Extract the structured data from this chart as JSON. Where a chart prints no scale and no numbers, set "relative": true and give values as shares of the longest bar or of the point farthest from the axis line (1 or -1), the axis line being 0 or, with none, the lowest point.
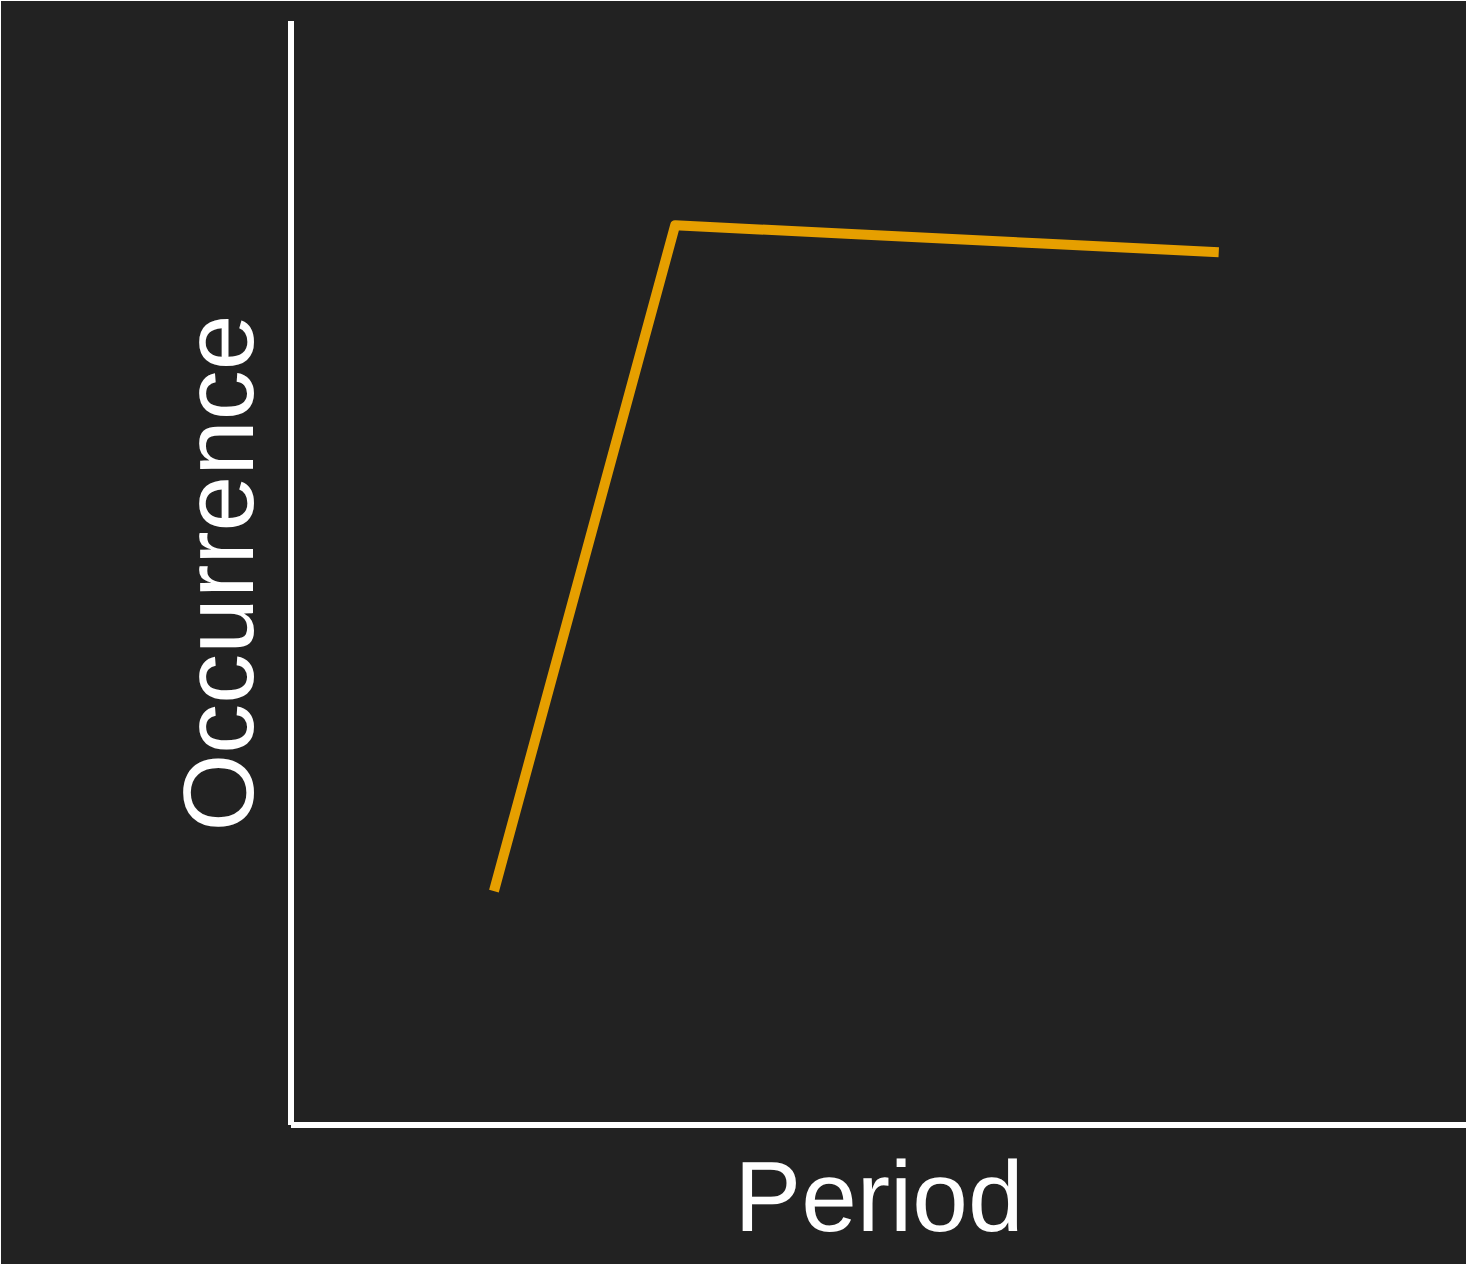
{
  "chart_data": {
    "type": "line",
    "xlabel": "Period",
    "ylabel": "Occurrence",
    "relative": true,
    "categories": [
      null,
      null,
      null,
      null,
      null
    ],
    "series": [
      {
        "color": "#e69f00",
        "values": [
          0.26,
          1,
          0.99,
          0.98,
          0.97
        ]
      }
    ],
    "grid": false,
    "marker": "none",
    "line_style": "solid"
  }
}
